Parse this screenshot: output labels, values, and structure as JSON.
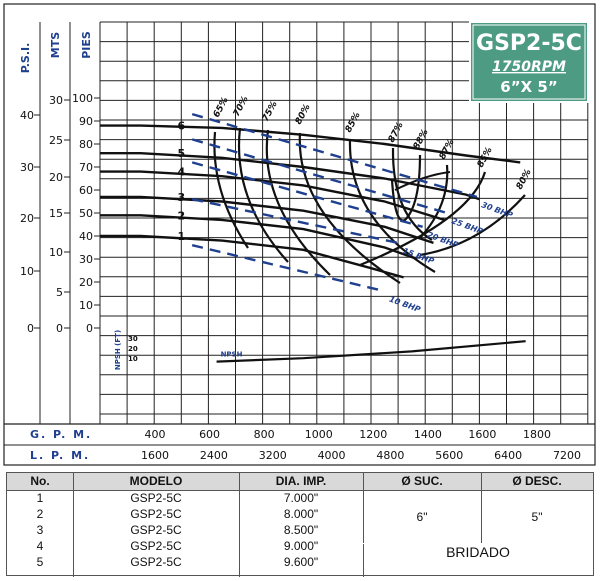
{
  "badge": {
    "model": "GSP2-5C",
    "rpm": "1750RPM",
    "size": "6”X 5”"
  },
  "axes": {
    "psi_label": "P.S.I.",
    "mts_label": "MTS",
    "pies_label": "PIES",
    "psi_ticks": [
      {
        "v": 40,
        "y": 115
      },
      {
        "v": 30,
        "y": 167
      },
      {
        "v": 20,
        "y": 218
      },
      {
        "v": 10,
        "y": 271
      },
      {
        "v": 0,
        "y": 328
      }
    ],
    "mts_ticks": [
      {
        "v": 30,
        "y": 100
      },
      {
        "v": 25,
        "y": 140
      },
      {
        "v": 20,
        "y": 177
      },
      {
        "v": 15,
        "y": 213
      },
      {
        "v": 10,
        "y": 252
      },
      {
        "v": 5,
        "y": 292
      },
      {
        "v": 0,
        "y": 328
      }
    ],
    "pies_ticks": [
      100,
      90,
      80,
      70,
      60,
      50,
      40,
      30,
      20,
      10,
      0
    ],
    "npsh_label": "NPSH (FT)",
    "npsh_ticks": [
      30,
      20,
      10
    ],
    "gpm_label": "G. P. M.",
    "lpm_label": "L. P. M.",
    "gpm_ticks": [
      400,
      600,
      800,
      1000,
      1200,
      1400,
      1600,
      1800
    ],
    "lpm_ticks": [
      1600,
      2400,
      3200,
      4000,
      4800,
      5600,
      6400,
      7200
    ]
  },
  "chart_data": {
    "type": "line",
    "x_unit": "GPM",
    "y_unit": "PIES",
    "xlim": [
      150,
      1950
    ],
    "ylim": [
      0,
      100
    ],
    "series": [
      {
        "name": "6",
        "points": [
          [
            150,
            88
          ],
          [
            300,
            88
          ],
          [
            600,
            87
          ],
          [
            900,
            84
          ],
          [
            1200,
            80
          ],
          [
            1500,
            75
          ],
          [
            1700,
            72
          ]
        ]
      },
      {
        "name": "5",
        "points": [
          [
            150,
            76
          ],
          [
            300,
            76
          ],
          [
            600,
            74
          ],
          [
            900,
            70
          ],
          [
            1200,
            65
          ],
          [
            1500,
            58
          ],
          [
            1550,
            56
          ]
        ]
      },
      {
        "name": "4",
        "points": [
          [
            150,
            68
          ],
          [
            300,
            68
          ],
          [
            600,
            66
          ],
          [
            900,
            62
          ],
          [
            1200,
            55
          ],
          [
            1420,
            47
          ]
        ]
      },
      {
        "name": "3",
        "points": [
          [
            150,
            57
          ],
          [
            300,
            57
          ],
          [
            600,
            55
          ],
          [
            900,
            51
          ],
          [
            1200,
            44
          ],
          [
            1380,
            37
          ]
        ]
      },
      {
        "name": "2",
        "points": [
          [
            150,
            49
          ],
          [
            300,
            49
          ],
          [
            600,
            47
          ],
          [
            900,
            43
          ],
          [
            1200,
            35
          ],
          [
            1320,
            30
          ]
        ]
      },
      {
        "name": "1",
        "points": [
          [
            150,
            40
          ],
          [
            300,
            40
          ],
          [
            600,
            38
          ],
          [
            900,
            34
          ],
          [
            1150,
            26
          ],
          [
            1270,
            22
          ]
        ]
      }
    ],
    "efficiency_labels": [
      "65%",
      "70%",
      "75%",
      "80%",
      "85%",
      "87%",
      "88%",
      "87%",
      "85%",
      "80%"
    ],
    "bhp_lines": [
      {
        "label": "30 BHP",
        "points": [
          [
            490,
            93
          ],
          [
            1540,
            57
          ]
        ]
      },
      {
        "label": "25 BHP",
        "points": [
          [
            490,
            82
          ],
          [
            1430,
            50
          ]
        ]
      },
      {
        "label": "20 BHP",
        "points": [
          [
            490,
            72
          ],
          [
            1340,
            44
          ]
        ]
      },
      {
        "label": "15 BHP",
        "points": [
          [
            490,
            56
          ],
          [
            1250,
            37
          ]
        ]
      },
      {
        "label": "10 BHP",
        "points": [
          [
            490,
            36
          ],
          [
            1200,
            16
          ]
        ]
      }
    ],
    "npsh_curve": {
      "label": "NPSH",
      "points": [
        [
          580,
          1
        ],
        [
          900,
          2
        ],
        [
          1300,
          4
        ],
        [
          1720,
          7
        ]
      ]
    }
  },
  "table": {
    "headers": [
      "No.",
      "MODELO",
      "DIA. IMP.",
      "Ø SUC.",
      "Ø DESC."
    ],
    "rows": [
      {
        "no": "1",
        "modelo": "GSP2-5C",
        "dia": "7.000\""
      },
      {
        "no": "2",
        "modelo": "GSP2-5C",
        "dia": "8.000\""
      },
      {
        "no": "3",
        "modelo": "GSP2-5C",
        "dia": "8.500\""
      },
      {
        "no": "4",
        "modelo": "GSP2-5C",
        "dia": "9.000\""
      },
      {
        "no": "5",
        "modelo": "GSP2-5C",
        "dia": "9.600\""
      }
    ],
    "suc": "6\"",
    "desc": "5\"",
    "note": "BRIDADO"
  },
  "colors": {
    "badge_bg": "#4d9b82",
    "blue": "#1f3f8f",
    "grid": "#222222"
  }
}
